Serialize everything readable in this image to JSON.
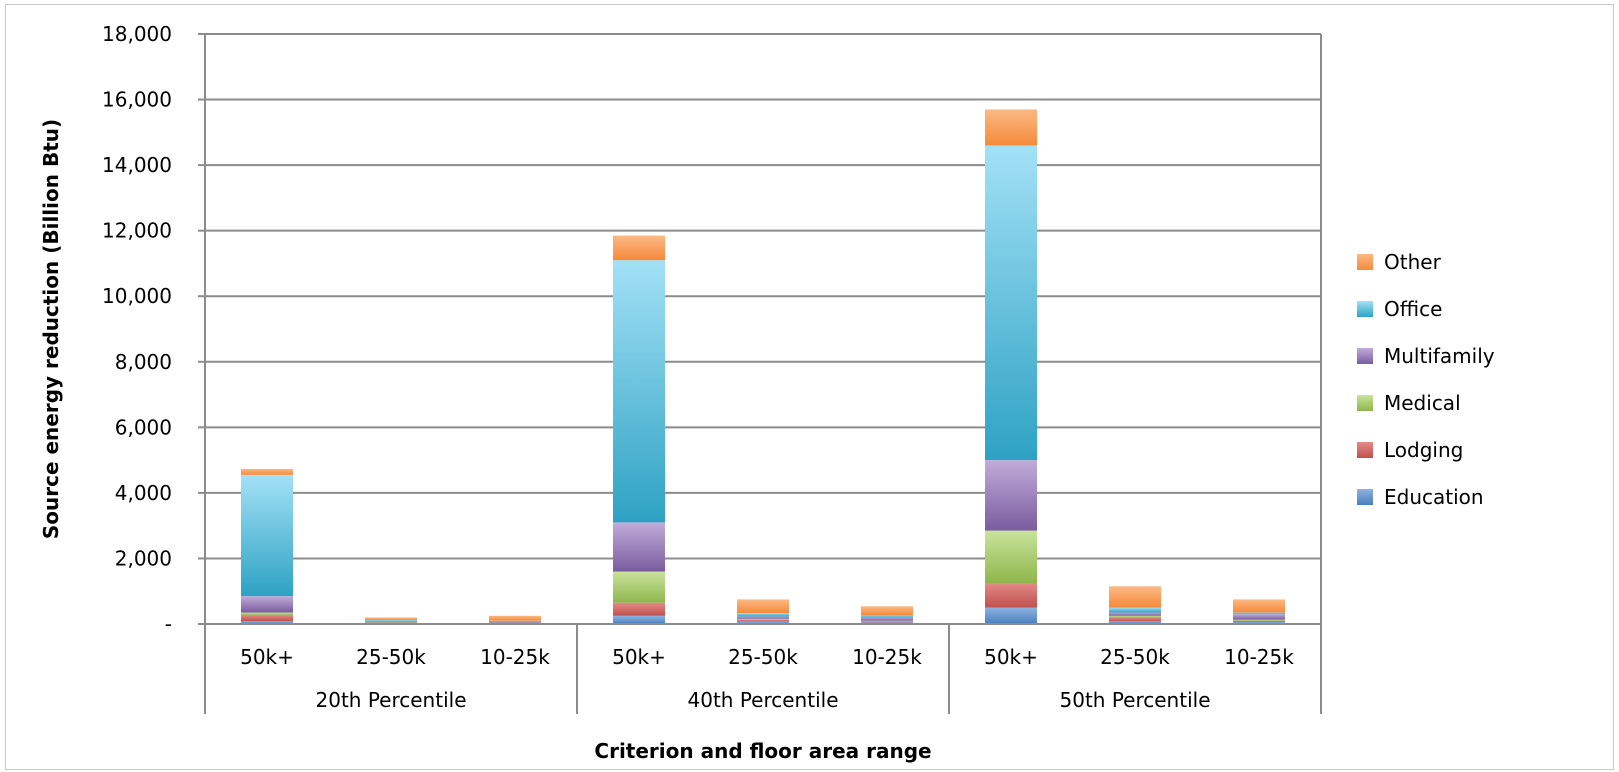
{
  "chart_data": {
    "type": "bar",
    "stacked": true,
    "xlabel": "Criterion and floor area range",
    "ylabel": "Source energy reduction (Billion Btu)",
    "ylim": [
      0,
      18000
    ],
    "yticks": [
      0,
      2000,
      4000,
      6000,
      8000,
      10000,
      12000,
      14000,
      16000,
      18000
    ],
    "ytick_labels": [
      "-",
      "2,000",
      "4,000",
      "6,000",
      "8,000",
      "10,000",
      "12,000",
      "14,000",
      "16,000",
      "18,000"
    ],
    "grid": true,
    "legend_position": "right",
    "groups": [
      {
        "label": "20th Percentile",
        "categories": [
          "50k+",
          "25-50k",
          "10-25k"
        ]
      },
      {
        "label": "40th Percentile",
        "categories": [
          "50k+",
          "25-50k",
          "10-25k"
        ]
      },
      {
        "label": "50th Percentile",
        "categories": [
          "50k+",
          "25-50k",
          "10-25k"
        ]
      }
    ],
    "series": [
      {
        "name": "Education",
        "color": "#4a7ebb",
        "values": [
          80,
          20,
          20,
          250,
          80,
          50,
          500,
          80,
          60
        ]
      },
      {
        "name": "Lodging",
        "color": "#c0504d",
        "values": [
          200,
          20,
          10,
          400,
          50,
          30,
          750,
          120,
          40
        ]
      },
      {
        "name": "Medical",
        "color": "#9bbb59",
        "values": [
          70,
          10,
          10,
          950,
          30,
          20,
          1600,
          50,
          30
        ]
      },
      {
        "name": "Multifamily",
        "color": "#8064a2",
        "values": [
          500,
          30,
          40,
          1500,
          70,
          100,
          2150,
          100,
          170
        ]
      },
      {
        "name": "Office",
        "color": "#4bacc6",
        "values": [
          3700,
          40,
          20,
          8000,
          100,
          60,
          9600,
          150,
          50
        ]
      },
      {
        "name": "Other",
        "color": "#f79646",
        "values": [
          180,
          80,
          150,
          750,
          420,
          280,
          1100,
          650,
          400
        ]
      }
    ]
  }
}
